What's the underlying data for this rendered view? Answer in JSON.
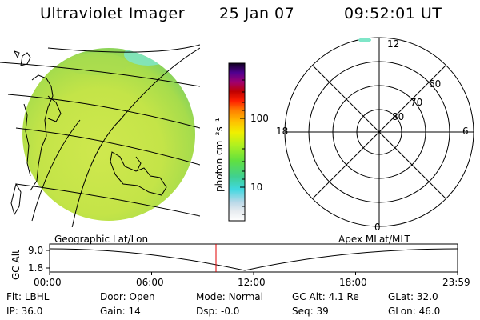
{
  "header": {
    "instrument": "Ultraviolet Imager",
    "date": "25 Jan 07",
    "time": "09:52:01 UT"
  },
  "colorbar": {
    "label": "photon cm⁻²s⁻¹",
    "ticks": [
      "100",
      "10"
    ]
  },
  "polar_plot": {
    "mlt_labels": {
      "top": "12",
      "left": "18",
      "right": "6",
      "bottom": "0"
    },
    "lat_labels": [
      "60",
      "70",
      "80"
    ]
  },
  "timeline": {
    "left_label": "Geographic Lat/Lon",
    "right_label": "Apex MLat/MLT",
    "y_axis_label": "GC Alt",
    "y_ticks": [
      "9.0",
      "1.8"
    ],
    "x_ticks": [
      "00:00",
      "06:00",
      "12:00",
      "18:00",
      "23:59"
    ],
    "marker_time": "09:52"
  },
  "status": {
    "row1": [
      {
        "label": "Flt:",
        "value": "LBHL"
      },
      {
        "label": "Door:",
        "value": "Open"
      },
      {
        "label": "Mode:",
        "value": "Normal"
      },
      {
        "label": "GC Alt:",
        "value": "4.1 Re"
      },
      {
        "label": "GLat:",
        "value": "32.0"
      }
    ],
    "row2": [
      {
        "label": "IP:",
        "value": "36.0"
      },
      {
        "label": "Gain:",
        "value": "14"
      },
      {
        "label": "Dsp:",
        "value": "-0.0"
      },
      {
        "label": "Seq:",
        "value": "39"
      },
      {
        "label": "GLon:",
        "value": "46.0"
      }
    ]
  },
  "colors": {
    "marker": "#e00000",
    "disk_main": "#c8e64a",
    "disk_edge": "#9ed84a",
    "disk_cyan": "#7fe6c8"
  }
}
